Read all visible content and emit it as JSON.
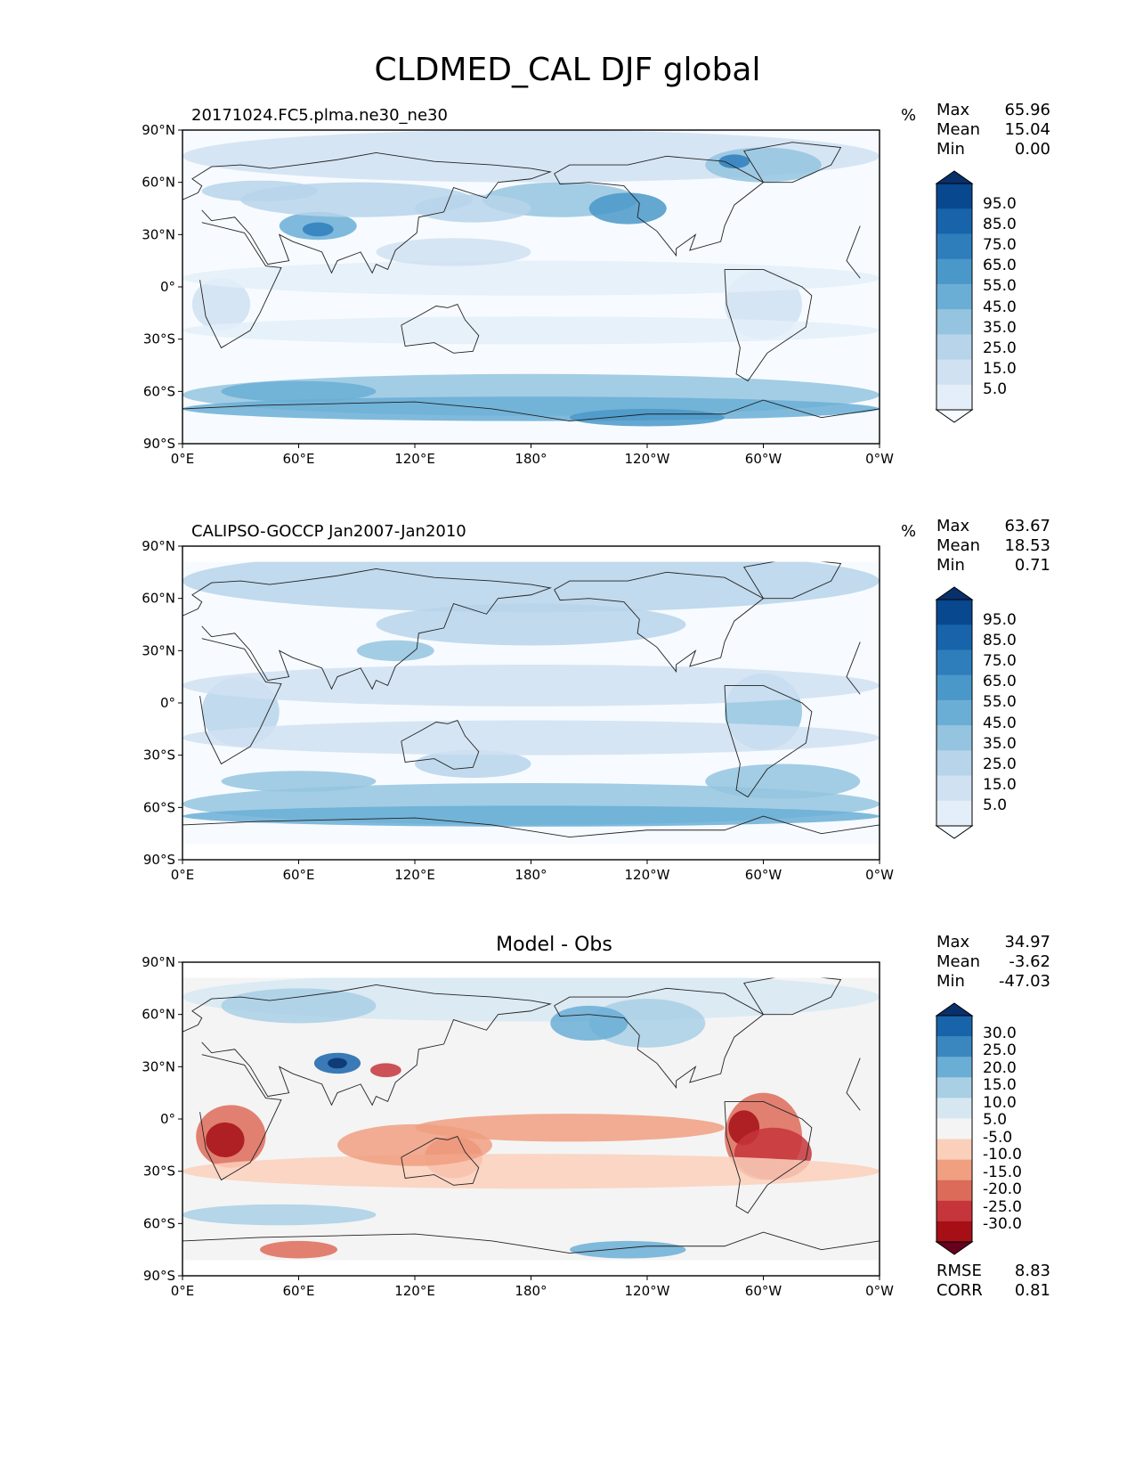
{
  "title": "CLDMED_CAL DJF global",
  "lat_ticks": [
    "90°N",
    "60°N",
    "30°N",
    "0°",
    "30°S",
    "60°S",
    "90°S"
  ],
  "lon_ticks": [
    "0°E",
    "60°E",
    "120°E",
    "180°",
    "120°W",
    "60°W",
    "0°W"
  ],
  "panels": [
    {
      "label": "20171024.FC5.plma.ne30_ne30",
      "units": "%",
      "stats": {
        "max_label": "Max",
        "max": "65.96",
        "mean_label": "Mean",
        "mean": "15.04",
        "min_label": "Min",
        "min": "0.00"
      },
      "colorbar": [
        "95.0",
        "85.0",
        "75.0",
        "65.0",
        "55.0",
        "45.0",
        "35.0",
        "25.0",
        "15.0",
        "5.0"
      ],
      "palette": "blues"
    },
    {
      "label": "CALIPSO-GOCCP Jan2007-Jan2010",
      "units": "%",
      "stats": {
        "max_label": "Max",
        "max": "63.67",
        "mean_label": "Mean",
        "mean": "18.53",
        "min_label": "Min",
        "min": "0.71"
      },
      "colorbar": [
        "95.0",
        "85.0",
        "75.0",
        "65.0",
        "55.0",
        "45.0",
        "35.0",
        "25.0",
        "15.0",
        "5.0"
      ],
      "palette": "blues"
    },
    {
      "label": "Model - Obs",
      "units": "",
      "stats": {
        "max_label": "Max",
        "max": "34.97",
        "mean_label": "Mean",
        "mean": "-3.62",
        "min_label": "Min",
        "min": "-47.03"
      },
      "colorbar": [
        "30.0",
        "25.0",
        "20.0",
        "15.0",
        "10.0",
        "5.0",
        "-5.0",
        "-10.0",
        "-15.0",
        "-20.0",
        "-25.0",
        "-30.0"
      ],
      "palette": "diverging",
      "metrics": {
        "rmse_label": "RMSE",
        "rmse": "8.83",
        "corr_label": "CORR",
        "corr": "0.81"
      }
    }
  ],
  "colors": {
    "blues": [
      "#f7fbff",
      "#e3eef8",
      "#d0e1f2",
      "#b7d4ea",
      "#94c4df",
      "#6aaed6",
      "#4a98c9",
      "#2e7ebc",
      "#1764ab",
      "#08488e",
      "#08306b"
    ],
    "diverging": [
      "#67001f",
      "#a50f15",
      "#c6353b",
      "#dd6b59",
      "#f09f81",
      "#fbd0bb",
      "#f4f4f4",
      "#d6e7f2",
      "#a9cfe5",
      "#6aaed6",
      "#3a87c0",
      "#1764ab",
      "#08306b"
    ]
  }
}
